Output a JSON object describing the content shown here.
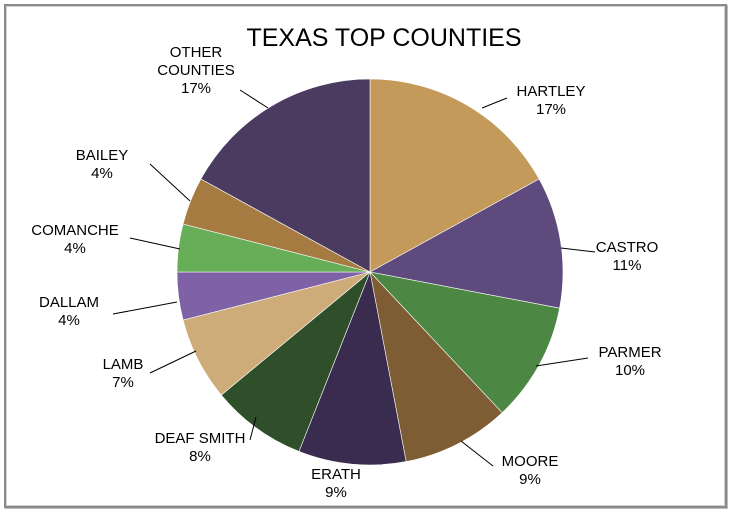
{
  "chart_data": {
    "type": "pie",
    "title": "TEXAS TOP COUNTIES",
    "categories": [
      "HARTLEY",
      "CASTRO",
      "PARMER",
      "MOORE",
      "ERATH",
      "DEAF SMITH",
      "LAMB",
      "DALLAM",
      "COMANCHE",
      "BAILEY",
      "OTHER COUNTIES"
    ],
    "values": [
      17,
      11,
      10,
      9,
      9,
      8,
      7,
      4,
      4,
      4,
      17
    ],
    "label_lines": [
      [
        "HARTLEY",
        "17%"
      ],
      [
        "CASTRO",
        "11%"
      ],
      [
        "PARMER",
        "10%"
      ],
      [
        "MOORE",
        "9%"
      ],
      [
        "ERATH",
        "9%"
      ],
      [
        "DEAF SMITH",
        "8%"
      ],
      [
        "LAMB",
        "7%"
      ],
      [
        "DALLAM",
        "4%"
      ],
      [
        "COMANCHE",
        "4%"
      ],
      [
        "BAILEY",
        "4%"
      ],
      [
        "OTHER",
        "COUNTIES",
        "17%"
      ]
    ],
    "colors": [
      "#C39A5A",
      "#5E4A7C",
      "#4D8744",
      "#7E5C34",
      "#3A2C4E",
      "#2F4F2B",
      "#CEAC7A",
      "#7F62A6",
      "#68AE59",
      "#A67B42",
      "#4B3B61"
    ],
    "start_angle_deg": 0,
    "direction": "clockwise",
    "legend": "none",
    "data_labels": "outside with leader lines"
  }
}
